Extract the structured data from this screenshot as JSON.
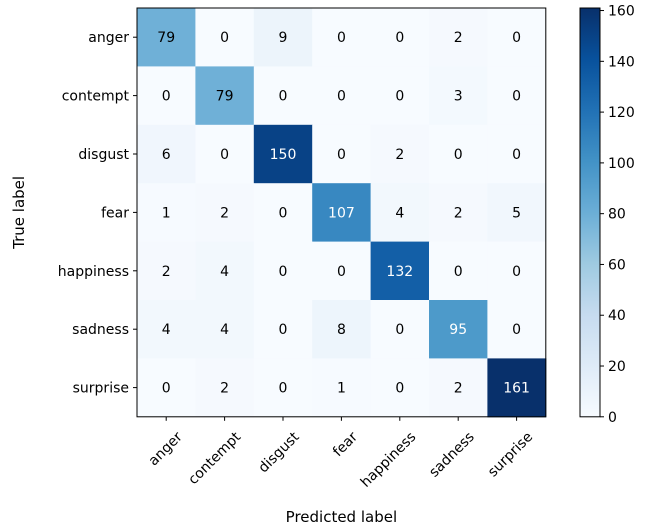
{
  "chart_data": {
    "type": "heatmap",
    "xlabel": "Predicted label",
    "ylabel": "True label",
    "x_categories": [
      "anger",
      "contempt",
      "disgust",
      "fear",
      "happiness",
      "sadness",
      "surprise"
    ],
    "y_categories": [
      "anger",
      "contempt",
      "disgust",
      "fear",
      "happiness",
      "sadness",
      "surprise"
    ],
    "values": [
      [
        79,
        0,
        9,
        0,
        0,
        2,
        0
      ],
      [
        0,
        79,
        0,
        0,
        0,
        3,
        0
      ],
      [
        6,
        0,
        150,
        0,
        2,
        0,
        0
      ],
      [
        1,
        2,
        0,
        107,
        4,
        2,
        5
      ],
      [
        2,
        4,
        0,
        0,
        132,
        0,
        0
      ],
      [
        4,
        4,
        0,
        8,
        0,
        95,
        0
      ],
      [
        0,
        2,
        0,
        1,
        0,
        2,
        161
      ]
    ],
    "colormap": "Blues",
    "colorbar": {
      "range": [
        0,
        161
      ],
      "ticks": [
        0,
        20,
        40,
        60,
        80,
        100,
        120,
        140,
        160
      ]
    }
  }
}
